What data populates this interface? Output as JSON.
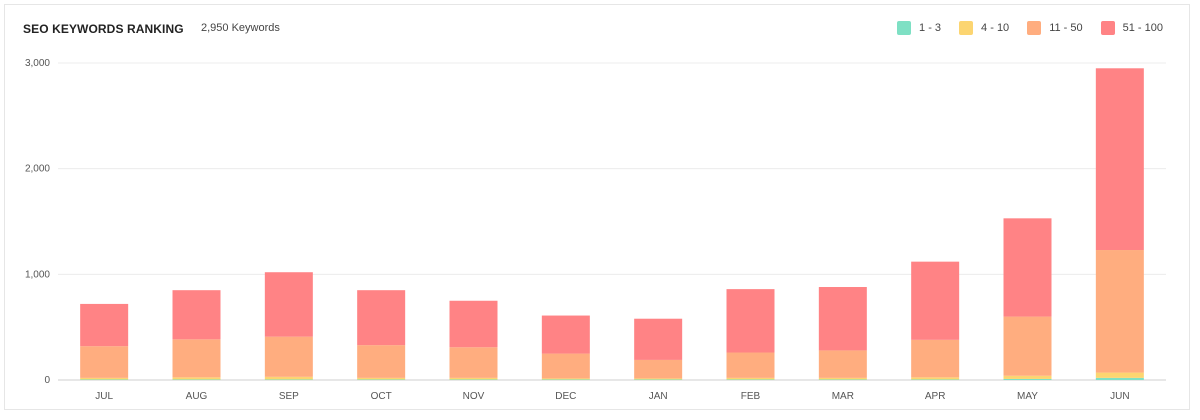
{
  "header": {
    "title": "SEO KEYWORDS RANKING",
    "subtitle": "2,950 Keywords"
  },
  "legend": [
    {
      "label": "1 - 3",
      "color": "#7ee0c4"
    },
    {
      "label": "4 - 10",
      "color": "#fcd571"
    },
    {
      "label": "11 - 50",
      "color": "#ffad7f"
    },
    {
      "label": "51 - 100",
      "color": "#ff8385"
    }
  ],
  "chart_data": {
    "type": "bar",
    "stacked": true,
    "categories": [
      "JUL",
      "AUG",
      "SEP",
      "OCT",
      "NOV",
      "DEC",
      "JAN",
      "FEB",
      "MAR",
      "APR",
      "MAY",
      "JUN"
    ],
    "series": [
      {
        "name": "1 - 3",
        "color": "#7ee0c4",
        "values": [
          5,
          5,
          5,
          5,
          5,
          5,
          5,
          5,
          5,
          5,
          10,
          20
        ]
      },
      {
        "name": "4 - 10",
        "color": "#fcd571",
        "values": [
          15,
          20,
          25,
          15,
          15,
          10,
          10,
          15,
          15,
          20,
          30,
          50
        ]
      },
      {
        "name": "11 - 50",
        "color": "#ffad7f",
        "values": [
          300,
          360,
          380,
          310,
          290,
          235,
          175,
          240,
          260,
          355,
          560,
          1160
        ]
      },
      {
        "name": "51 - 100",
        "color": "#ff8385",
        "values": [
          400,
          465,
          610,
          520,
          440,
          360,
          390,
          600,
          600,
          740,
          930,
          1720
        ]
      }
    ],
    "ylim": [
      0,
      3000
    ],
    "yticks": [
      0,
      1000,
      2000,
      3000
    ],
    "ytick_labels": [
      "0",
      "1,000",
      "2,000",
      "3,000"
    ],
    "grid": true,
    "legend_position": "top-right"
  }
}
